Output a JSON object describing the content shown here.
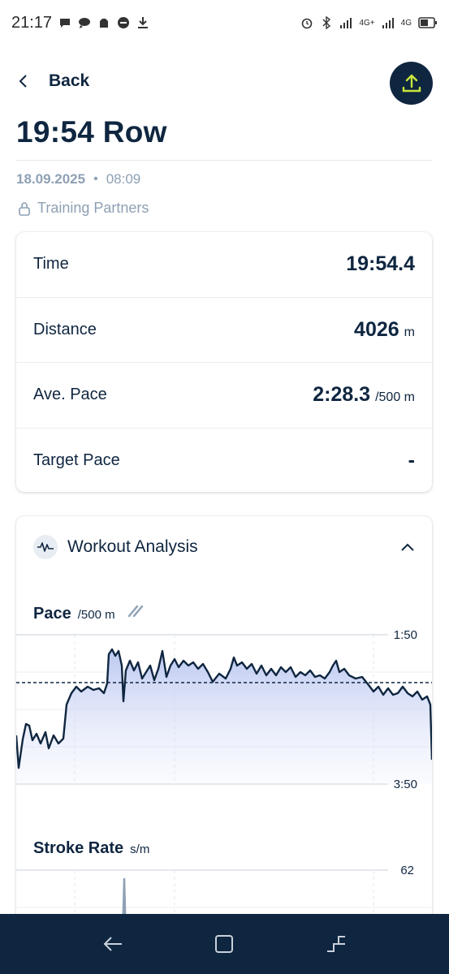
{
  "status_bar": {
    "time": "21:17",
    "right_label_1": "4G+",
    "right_label_2": "4G"
  },
  "header": {
    "back_label": "Back"
  },
  "workout": {
    "title": "19:54 Row",
    "date": "18.09.2025",
    "separator": "•",
    "time": "08:09",
    "privacy": "Training Partners"
  },
  "stats": [
    {
      "label": "Time",
      "value": "19:54.4",
      "unit": ""
    },
    {
      "label": "Distance",
      "value": "4026",
      "unit": "m"
    },
    {
      "label": "Ave. Pace",
      "value": "2:28.3",
      "unit": "/500 m"
    },
    {
      "label": "Target Pace",
      "value": "-",
      "unit": ""
    }
  ],
  "analysis": {
    "title": "Workout Analysis",
    "pace": {
      "label": "Pace",
      "unit": "/500 m",
      "axis_top": "1:50",
      "axis_bottom": "3:50"
    },
    "stroke_rate": {
      "label": "Stroke Rate",
      "unit": "s/m",
      "axis_top": "62"
    }
  },
  "colors": {
    "navy": "#0f2640",
    "accent": "#c8e63c",
    "muted": "#8ea0b4",
    "fill": "#c9d3f3"
  }
}
